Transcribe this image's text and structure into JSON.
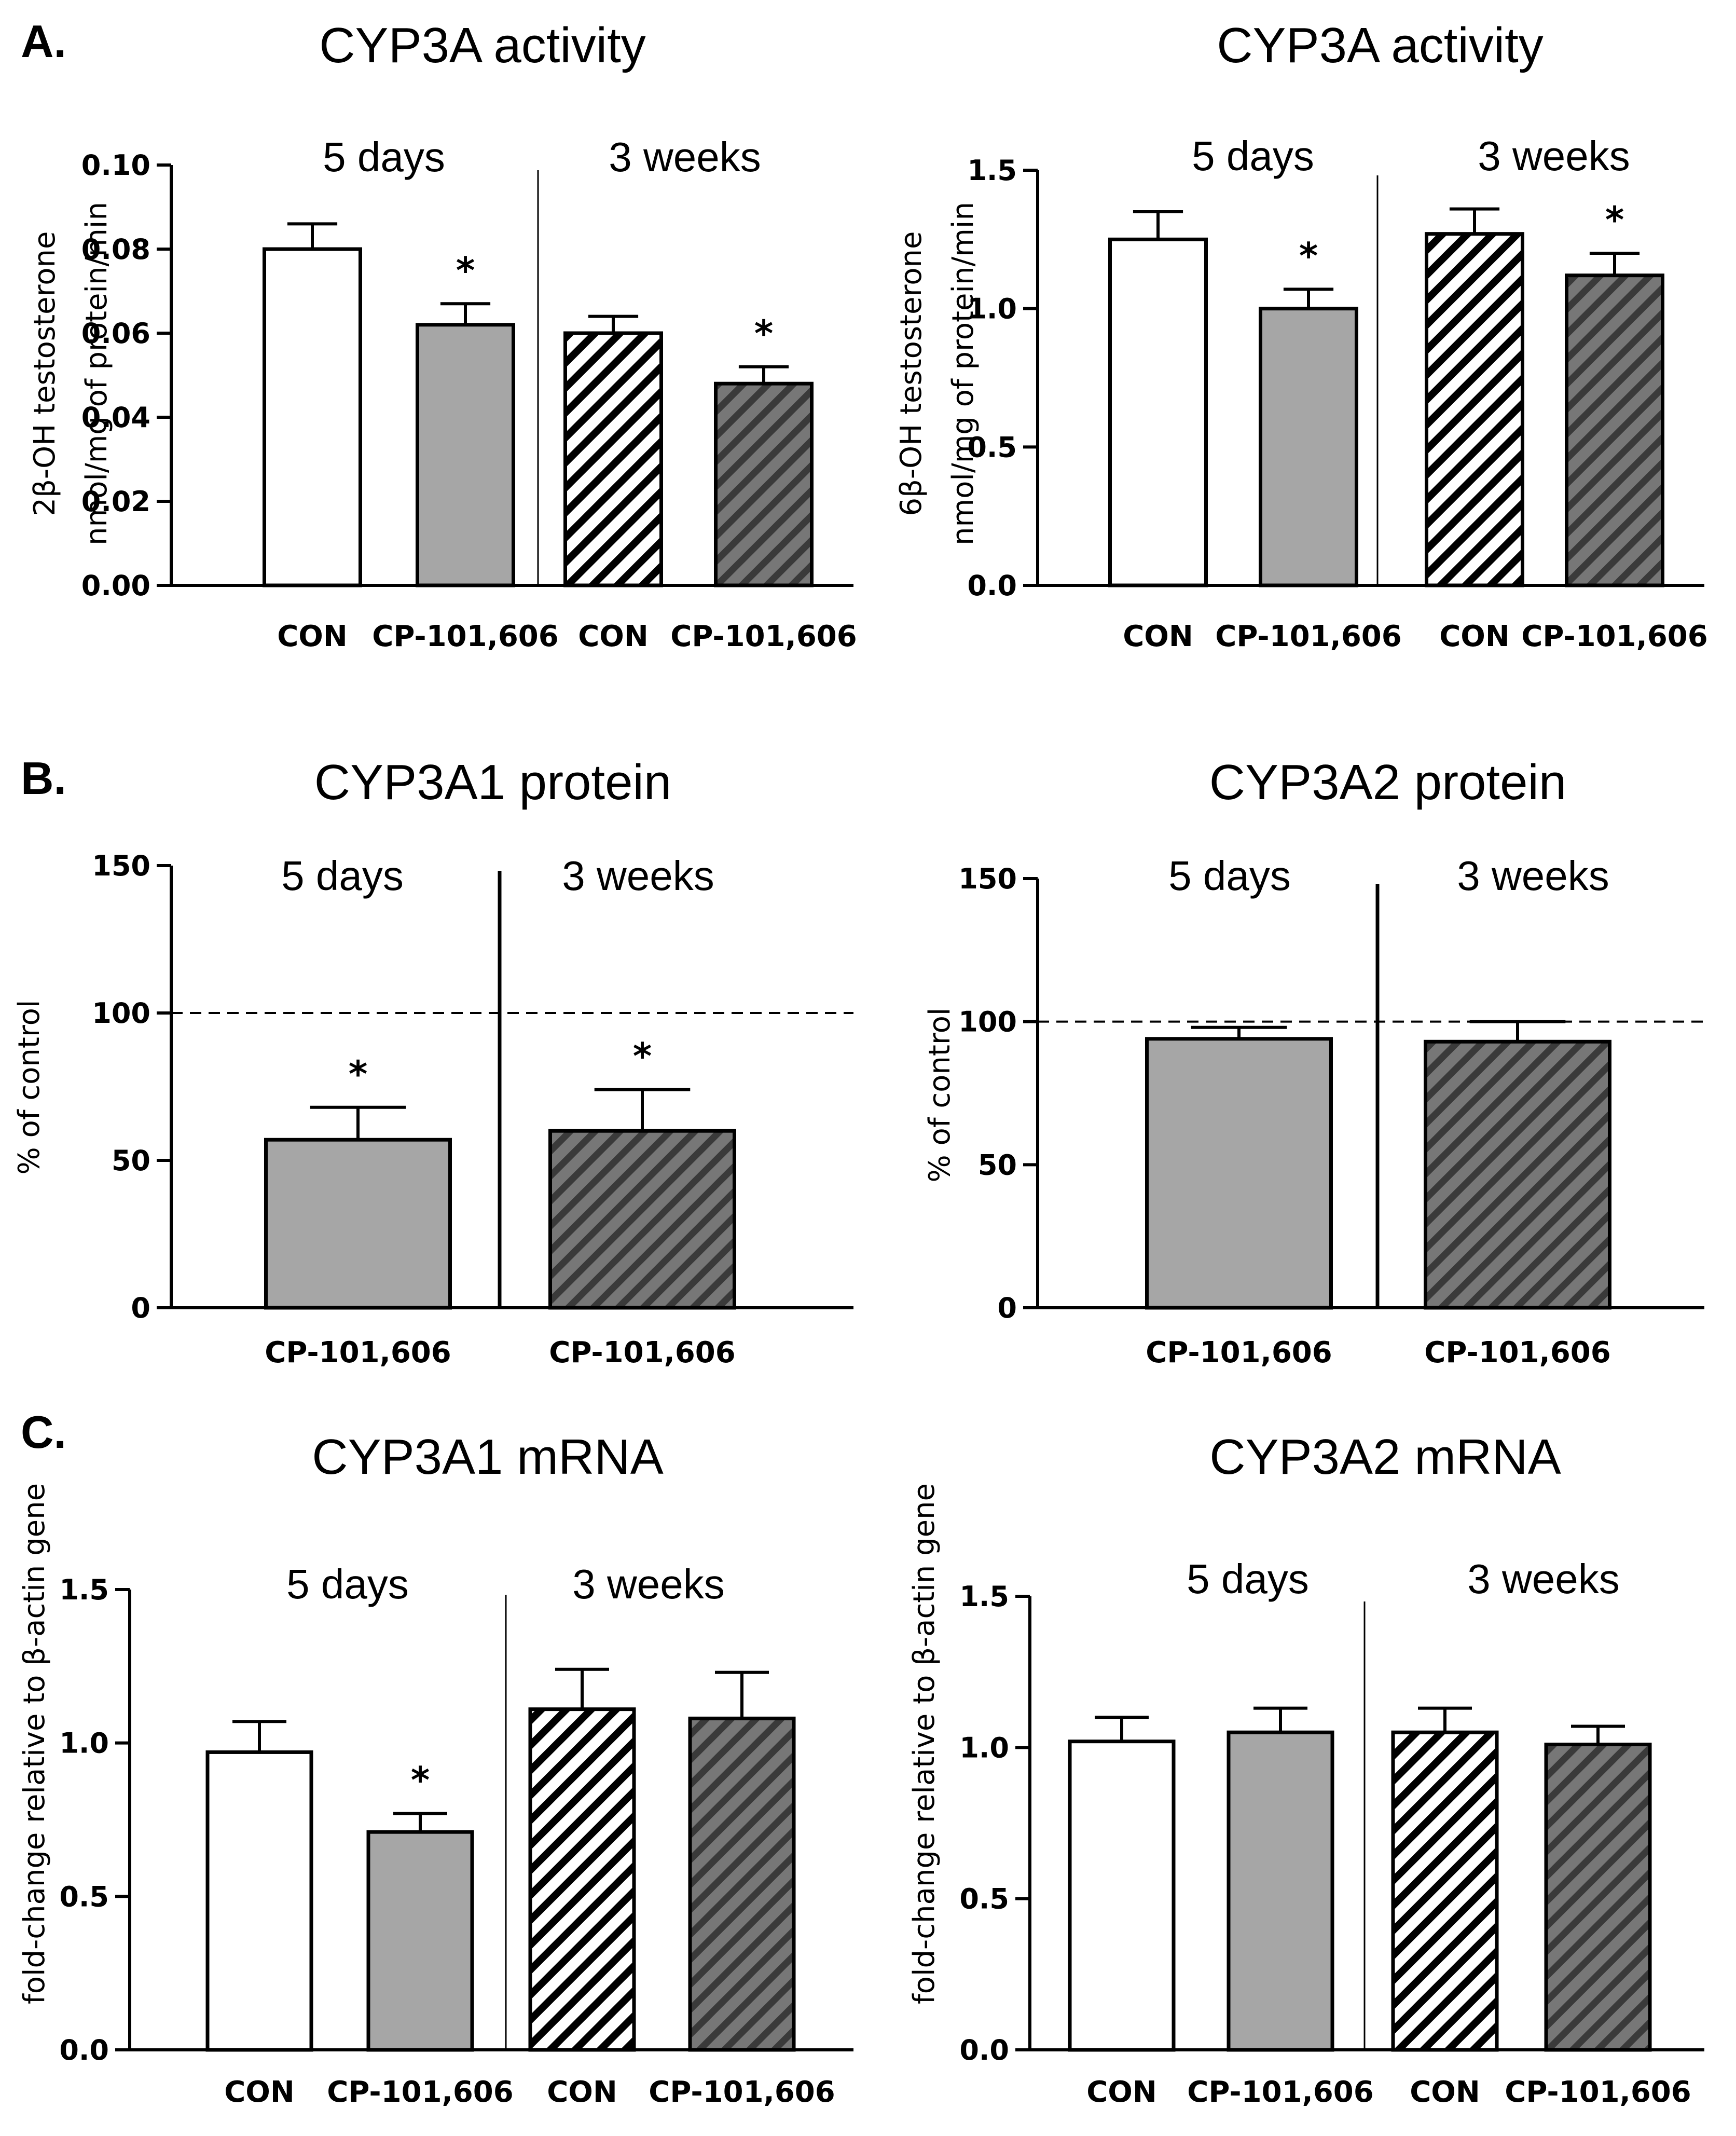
{
  "panel_letters": [
    "A.",
    "B.",
    "C."
  ],
  "colors": {
    "con_fill": "#ffffff",
    "cp_fill": "#a6a6a6",
    "stroke": "#000000",
    "con_hatch_stripe": "#000000",
    "cp_hatch_bg": "#777777",
    "cp_hatch_stripe": "#3a3a3a"
  },
  "chart_data": [
    {
      "id": "A-left",
      "type": "bar",
      "title": "CYP3A activity",
      "ylabel": [
        "2β-OH testosterone",
        "nmol/mg  of protein/min"
      ],
      "ylim": [
        0,
        0.1
      ],
      "yticks": [
        "0.00",
        "0.02",
        "0.04",
        "0.06",
        "0.08",
        "0.10"
      ],
      "tick_values": [
        0,
        0.02,
        0.04,
        0.06,
        0.08,
        0.1
      ],
      "periods": [
        "5 days",
        "3 weeks"
      ],
      "categories": [
        "CON",
        "CP-101,606",
        "CON",
        "CP-101,606"
      ],
      "values": [
        0.08,
        0.062,
        0.06,
        0.048
      ],
      "errors": [
        0.006,
        0.005,
        0.004,
        0.004
      ],
      "significant": [
        false,
        true,
        false,
        true
      ],
      "styles": [
        "con",
        "cp",
        "con-hatch",
        "cp-hatch"
      ],
      "reference_line": null
    },
    {
      "id": "A-right",
      "type": "bar",
      "title": "CYP3A activity",
      "ylabel": [
        "6β-OH testosterone",
        "nmol/mg  of protein/min"
      ],
      "ylim": [
        0,
        1.5
      ],
      "yticks": [
        "0.0",
        "0.5",
        "1.0",
        "1.5"
      ],
      "tick_values": [
        0,
        0.5,
        1.0,
        1.5
      ],
      "periods": [
        "5 days",
        "3 weeks"
      ],
      "categories": [
        "CON",
        "CP-101,606",
        "CON",
        "CP-101,606"
      ],
      "values": [
        1.25,
        1.0,
        1.27,
        1.12
      ],
      "errors": [
        0.1,
        0.07,
        0.09,
        0.08
      ],
      "significant": [
        false,
        true,
        false,
        true
      ],
      "styles": [
        "con",
        "cp",
        "con-hatch",
        "cp-hatch"
      ],
      "reference_line": null
    },
    {
      "id": "B-left",
      "type": "bar",
      "title": "CYP3A1 protein",
      "ylabel": [
        "% of control"
      ],
      "ylim": [
        0,
        150
      ],
      "yticks": [
        "0",
        "50",
        "100",
        "150"
      ],
      "tick_values": [
        0,
        50,
        100,
        150
      ],
      "periods": [
        "5 days",
        "3 weeks"
      ],
      "categories": [
        "CP-101,606",
        "CP-101,606"
      ],
      "values": [
        57,
        60
      ],
      "errors": [
        11,
        14
      ],
      "significant": [
        true,
        true
      ],
      "styles": [
        "cp",
        "cp-hatch"
      ],
      "reference_line": 100
    },
    {
      "id": "B-right",
      "type": "bar",
      "title": "CYP3A2 protein",
      "ylabel": [
        "% of control"
      ],
      "ylim": [
        0,
        150
      ],
      "yticks": [
        "0",
        "50",
        "100",
        "150"
      ],
      "tick_values": [
        0,
        50,
        100,
        150
      ],
      "periods": [
        "5 days",
        "3 weeks"
      ],
      "categories": [
        "CP-101,606",
        "CP-101,606"
      ],
      "values": [
        94,
        93
      ],
      "errors": [
        4,
        7
      ],
      "significant": [
        false,
        false
      ],
      "styles": [
        "cp",
        "cp-hatch"
      ],
      "reference_line": 100
    },
    {
      "id": "C-left",
      "type": "bar",
      "title": "CYP3A1 mRNA",
      "ylabel": [
        "fold-change relative to β-actin gene"
      ],
      "ylim": [
        0,
        1.5
      ],
      "yticks": [
        "0.0",
        "0.5",
        "1.0",
        "1.5"
      ],
      "tick_values": [
        0,
        0.5,
        1.0,
        1.5
      ],
      "periods": [
        "5 days",
        "3 weeks"
      ],
      "categories": [
        "CON",
        "CP-101,606",
        "CON",
        "CP-101,606"
      ],
      "values": [
        0.97,
        0.71,
        1.11,
        1.08
      ],
      "errors": [
        0.1,
        0.06,
        0.13,
        0.15
      ],
      "significant": [
        false,
        true,
        false,
        false
      ],
      "styles": [
        "con",
        "cp",
        "con-hatch",
        "cp-hatch"
      ],
      "reference_line": null
    },
    {
      "id": "C-right",
      "type": "bar",
      "title": "CYP3A2 mRNA",
      "ylabel": [
        "fold-change relative to β-actin gene"
      ],
      "ylim": [
        0,
        1.5
      ],
      "yticks": [
        "0.0",
        "0.5",
        "1.0",
        "1.5"
      ],
      "tick_values": [
        0,
        0.5,
        1.0,
        1.5
      ],
      "periods": [
        "5 days",
        "3 weeks"
      ],
      "categories": [
        "CON",
        "CP-101,606",
        "CON",
        "CP-101,606"
      ],
      "values": [
        1.02,
        1.05,
        1.05,
        1.01
      ],
      "errors": [
        0.08,
        0.08,
        0.08,
        0.06
      ],
      "significant": [
        false,
        false,
        false,
        false
      ],
      "styles": [
        "con",
        "cp",
        "con-hatch",
        "cp-hatch"
      ],
      "reference_line": null
    }
  ]
}
